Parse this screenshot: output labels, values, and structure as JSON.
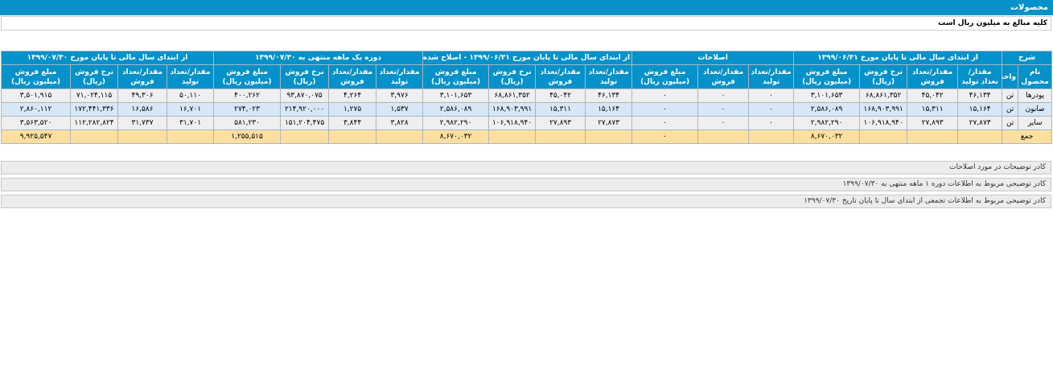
{
  "header": {
    "title": "محصولات",
    "note": "کلیه مبالغ به میلیون ریال است"
  },
  "table": {
    "group_headers": [
      "شرح",
      "از ابتدای سال مالی تا پایان مورخ ۱۳۹۹/۰۶/۳۱",
      "اصلاحات",
      "از ابتدای سال مالی تا پایان مورخ ۱۳۹۹/۰۶/۳۱ - اصلاح شده",
      "دوره یک ماهه منتهی به ۱۳۹۹/۰۷/۳۰",
      "از ابتدای سال مالی تا پایان مورخ ۱۳۹۹/۰۷/۳۰"
    ],
    "column_headers": [
      "نام محصول",
      "واحد",
      "مقدار/تعداد تولید",
      "مقدار/تعداد فروش",
      "نرخ فروش (ریال)",
      "مبلغ فروش (میلیون ریال)",
      "مقدار/تعداد تولید",
      "مقدار/تعداد فروش",
      "مبلغ فروش (میلیون ریال)",
      "مقدار/تعداد تولید",
      "مقدار/تعداد فروش",
      "نرخ فروش (ریال)",
      "مبلغ فروش (میلیون ریال)",
      "مقدار/تعداد تولید",
      "مقدار/تعداد فروش",
      "نرخ فروش (ریال)",
      "مبلغ فروش (میلیون ریال)",
      "مقدار/تعداد تولید",
      "مقدار/تعداد فروش",
      "نرخ فروش (ریال)",
      "مبلغ فروش (میلیون ریال)"
    ],
    "rows": [
      [
        "پودرها",
        "تن",
        "۴۶,۱۳۴",
        "۴۵,۰۴۲",
        "۶۸,۸۶۱,۳۵۲",
        "۳,۱۰۱,۶۵۳",
        "۰",
        "۰",
        "۰",
        "۴۶,۱۳۴",
        "۴۵,۰۴۲",
        "۶۸,۸۶۱,۳۵۲",
        "۳,۱۰۱,۶۵۳",
        "۳,۹۷۶",
        "۴,۲۶۴",
        "۹۳,۸۷۰,۰۷۵",
        "۴۰۰,۲۶۲",
        "۵۰,۱۱۰",
        "۴۹,۳۰۶",
        "۷۱,۰۲۴,۱۱۵",
        "۳,۵۰۱,۹۱۵"
      ],
      [
        "صابون",
        "تن",
        "۱۵,۱۶۴",
        "۱۵,۳۱۱",
        "۱۶۸,۹۰۳,۹۹۱",
        "۲,۵۸۶,۰۸۹",
        "۰",
        "۰",
        "۰",
        "۱۵,۱۶۴",
        "۱۵,۳۱۱",
        "۱۶۸,۹۰۳,۹۹۱",
        "۲,۵۸۶,۰۸۹",
        "۱,۵۳۷",
        "۱,۲۷۵",
        "۲۱۴,۹۲۰,۰۰۰",
        "۲۷۴,۰۲۳",
        "۱۶,۷۰۱",
        "۱۶,۵۸۶",
        "۱۷۲,۴۴۱,۳۳۶",
        "۲,۸۶۰,۱۱۲"
      ],
      [
        "سایر",
        "تن",
        "۲۷,۸۷۳",
        "۲۷,۸۹۳",
        "۱۰۶,۹۱۸,۹۴۰",
        "۲,۹۸۲,۲۹۰",
        "۰",
        "۰",
        "۰",
        "۲۷,۸۷۳",
        "۲۷,۸۹۳",
        "۱۰۶,۹۱۸,۹۴۰",
        "۲,۹۸۲,۲۹۰",
        "۳,۸۲۸",
        "۳,۸۴۴",
        "۱۵۱,۲۰۴,۴۷۵",
        "۵۸۱,۲۳۰",
        "۳۱,۷۰۱",
        "۳۱,۷۳۷",
        "۱۱۲,۲۸۲,۸۲۴",
        "۳,۵۶۳,۵۲۰"
      ]
    ],
    "total": {
      "label": "جمع",
      "cells": [
        null,
        null,
        null,
        "۸,۶۷۰,۰۳۲",
        null,
        null,
        "۰",
        null,
        null,
        null,
        "۸,۶۷۰,۰۳۲",
        null,
        null,
        null,
        "۱,۲۵۵,۵۱۵",
        null,
        null,
        null,
        "۹,۹۲۵,۵۴۷"
      ]
    }
  },
  "notes": [
    "کادر توضیحات در مورد اصلاحات",
    "کادر توضیحی مربوط به اطلاعات دوره ۱ ماهه منتهی به ۱۳۹۹/۰۷/۳۰",
    "کادر توضیحی مربوط به اطلاعات تجمعی از ابتدای سال تا پایان تاریخ ۱۳۹۹/۰۷/۳۰"
  ]
}
